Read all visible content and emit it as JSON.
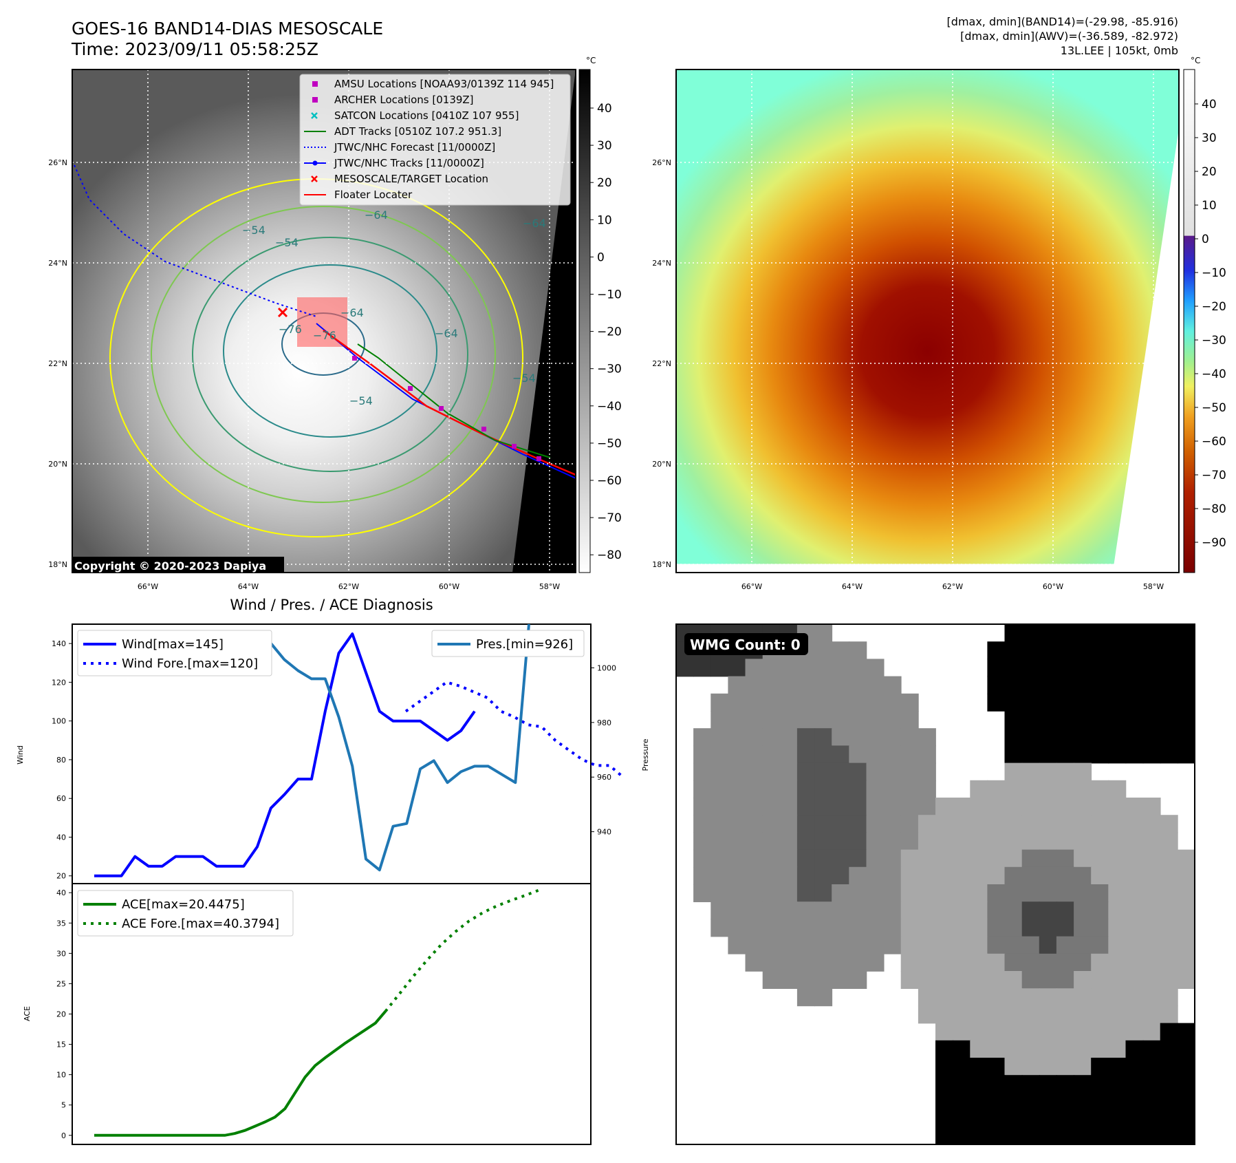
{
  "header": {
    "title_line1": "GOES-16 BAND14-DIAS MESOSCALE",
    "title_line2": "Time: 2023/09/11 05:58:25Z",
    "stats_line1": "[dmax, dmin](BAND14)=(-29.98, -85.916)",
    "stats_line2": "[dmax, dmin](AWV)=(-36.589, -82.972)",
    "stats_line3": "13L.LEE | 105kt, 0mb"
  },
  "map_ir": {
    "unit_label": "°C",
    "lat_labels": [
      "26°N",
      "24°N",
      "22°N",
      "20°N",
      "18°N"
    ],
    "lon_labels": [
      "66°W",
      "64°W",
      "62°W",
      "60°W",
      "58°W"
    ],
    "colorbar_ticks": [
      "40",
      "30",
      "20",
      "10",
      "0",
      "−10",
      "−20",
      "−30",
      "−40",
      "−50",
      "−60",
      "−70",
      "−80"
    ],
    "copyright": "Copyright © 2020-2023 Dapiya",
    "contour_labels": [
      "−54",
      "−54",
      "−64",
      "−64",
      "−64",
      "−76",
      "−76",
      "−64",
      "−54",
      "−54"
    ],
    "legend": [
      {
        "label": "AMSU Locations [NOAA93/0139Z 114 945]",
        "color": "#c000c0",
        "marker": "square"
      },
      {
        "label": "ARCHER Locations [0139Z]",
        "color": "#c000c0",
        "marker": "square"
      },
      {
        "label": "SATCON Locations [0410Z 107 955]",
        "color": "#00c0c0",
        "marker": "x"
      },
      {
        "label": "ADT Tracks [0510Z 107.2 951.3]",
        "color": "#008000",
        "marker": "line"
      },
      {
        "label": "JTWC/NHC Forecast [11/0000Z]",
        "color": "#0000ff",
        "marker": "dotted"
      },
      {
        "label": "JTWC/NHC Tracks [11/0000Z]",
        "color": "#0000ff",
        "marker": "line-dot"
      },
      {
        "label": "MESOSCALE/TARGET Location",
        "color": "#ff0000",
        "marker": "x"
      },
      {
        "label": "Floater Locater",
        "color": "#ff0000",
        "marker": "line"
      }
    ]
  },
  "map_awv": {
    "unit_label": "°C",
    "lat_labels": [
      "26°N",
      "24°N",
      "22°N",
      "20°N",
      "18°N"
    ],
    "lon_labels": [
      "66°W",
      "64°W",
      "62°W",
      "60°W",
      "58°W"
    ],
    "colorbar_ticks": [
      "40",
      "30",
      "20",
      "10",
      "0",
      "−10",
      "−20",
      "−30",
      "−40",
      "−50",
      "−60",
      "−70",
      "−80",
      "−90"
    ]
  },
  "wmg_panel": {
    "count_label": "WMG Count: 0"
  },
  "chart_data": [
    {
      "type": "line",
      "title": "Wind / Pres. / ACE Diagnosis",
      "ylabel": "Wind",
      "ylabel_right": "Pressure",
      "ylim": [
        16,
        150
      ],
      "ylim_right": [
        921,
        1016
      ],
      "yticks": [
        20,
        40,
        60,
        80,
        100,
        120,
        140
      ],
      "yticks_right": [
        940,
        960,
        980,
        1000
      ],
      "series": [
        {
          "name": "Wind[max=145]",
          "axis": "left",
          "style": "solid",
          "color": "#0000ff",
          "values": [
            20,
            20,
            20,
            30,
            25,
            25,
            30,
            30,
            30,
            25,
            25,
            25,
            35,
            55,
            62,
            70,
            70,
            105,
            135,
            145,
            125,
            105,
            100,
            100,
            100,
            95,
            90,
            95,
            105
          ]
        },
        {
          "name": "Wind Fore.[max=120]",
          "axis": "left",
          "style": "dotted",
          "color": "#0000ff",
          "values": [
            105,
            110,
            115,
            120,
            118,
            115,
            112,
            105,
            102,
            98,
            97,
            90,
            85,
            80,
            77,
            77,
            71
          ]
        },
        {
          "name": "Pres.[min=926]",
          "axis": "right",
          "style": "solid",
          "color": "#1f77b4",
          "values": [
            1012,
            1012,
            1012,
            1011,
            1011,
            1011,
            1011,
            1011,
            1011,
            1012,
            1012,
            1012,
            1011,
            1009,
            1003,
            999,
            996,
            996,
            982,
            964,
            930,
            926,
            942,
            943,
            963,
            966,
            958,
            962,
            964,
            964,
            961,
            958,
            1016
          ]
        },
        {
          "name": "",
          "axis": "left",
          "style": "solid",
          "color": "#0000ff",
          "values": [
            126,
            145
          ]
        }
      ],
      "legend_left_entries": [
        "Wind[max=145]",
        "Wind Fore.[max=120]"
      ],
      "legend_right_entries": [
        "Pres.[min=926]"
      ]
    },
    {
      "type": "line",
      "ylabel": "ACE",
      "ylim": [
        -1.5,
        41.5
      ],
      "yticks": [
        0,
        5,
        10,
        15,
        20,
        25,
        30,
        35,
        40
      ],
      "series": [
        {
          "name": "ACE[max=20.4475]",
          "style": "solid",
          "color": "#008000",
          "values": [
            0,
            0,
            0,
            0,
            0,
            0,
            0,
            0,
            0,
            0,
            0,
            0,
            0,
            0,
            0.3,
            0.8,
            1.5,
            2.2,
            3.0,
            4.4,
            7.0,
            9.6,
            11.5,
            12.8,
            14.0,
            15.2,
            16.3,
            17.4,
            18.5,
            20.4475
          ]
        },
        {
          "name": "ACE Fore.[max=40.3794]",
          "style": "dotted",
          "color": "#008000",
          "values": [
            20.4475,
            23.3,
            26.2,
            28.9,
            31.4,
            33.5,
            35.3,
            36.7,
            37.8,
            38.7,
            39.5,
            40.3794
          ]
        }
      ],
      "legend_entries": [
        "ACE[max=20.4475]",
        "ACE Fore.[max=40.3794]"
      ]
    }
  ],
  "colors": {
    "awv_hot": "#8b0000",
    "awv_cold": "#7fffd4",
    "wind": "#0000ff",
    "pressure": "#1f77b4",
    "ace": "#008000",
    "contour_yellow": "#ffff00",
    "contour_green": "#7ec850",
    "contour_teal": "#2a8a8a"
  }
}
